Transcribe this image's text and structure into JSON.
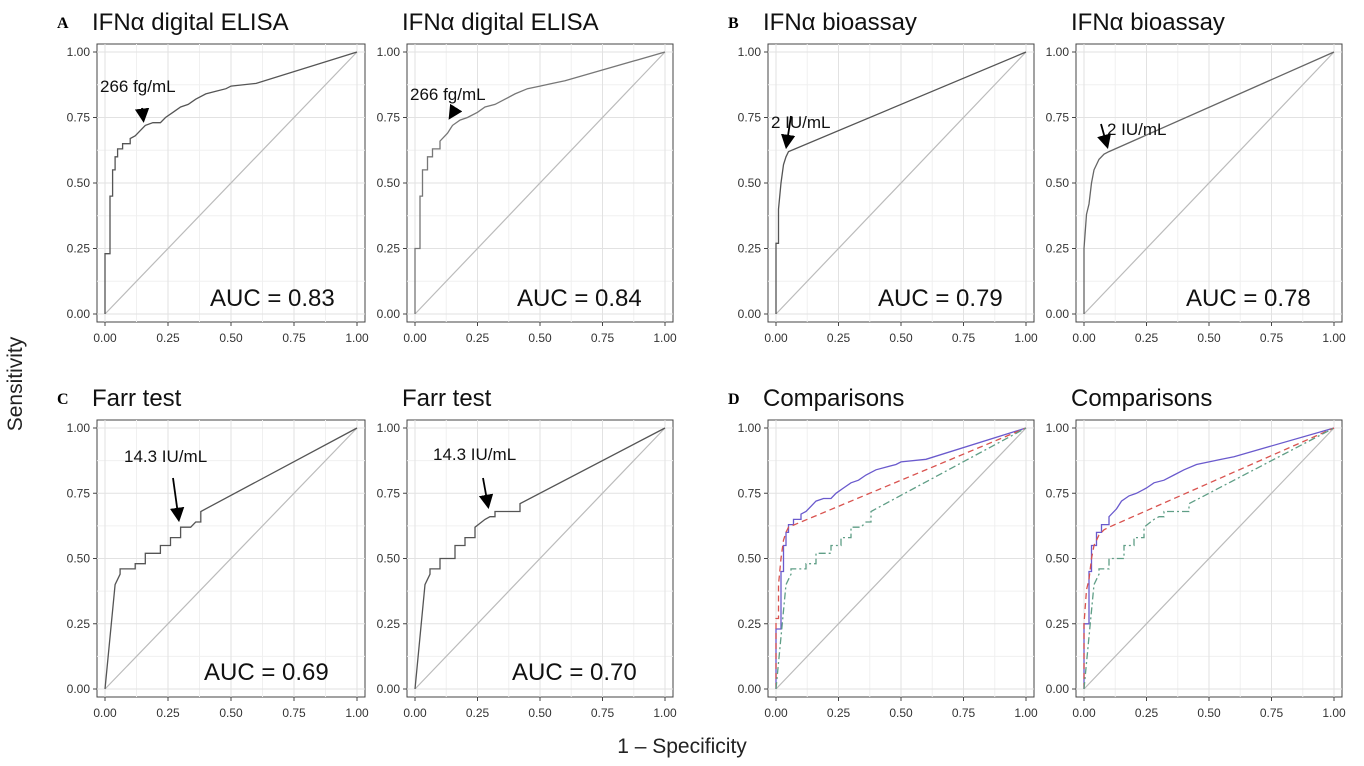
{
  "figure": {
    "ylabel": "Sensitivity",
    "xlabel": "1 – Specificity"
  },
  "chart_data": [
    {
      "type": "line",
      "panel": "A",
      "title": "IFNα digital ELISA",
      "xlim": [
        0,
        1
      ],
      "ylim": [
        0,
        1
      ],
      "x_ticks": [
        "0.00",
        "0.25",
        "0.50",
        "0.75",
        "1.00"
      ],
      "y_ticks": [
        "0.00",
        "0.25",
        "0.50",
        "0.75",
        "1.00"
      ],
      "annotation": "266 fg/mL",
      "annotation_point": [
        0.16,
        0.72
      ],
      "auc_label": "AUC = 0.83",
      "series": [
        {
          "color": "#555555",
          "dash": "",
          "x": [
            0,
            0,
            0.02,
            0.02,
            0.03,
            0.03,
            0.04,
            0.04,
            0.05,
            0.05,
            0.07,
            0.07,
            0.1,
            0.1,
            0.12,
            0.14,
            0.16,
            0.19,
            0.22,
            0.24,
            0.27,
            0.3,
            0.33,
            0.36,
            0.4,
            0.44,
            0.48,
            0.5,
            0.6,
            1
          ],
          "y": [
            0,
            0.23,
            0.23,
            0.45,
            0.45,
            0.55,
            0.55,
            0.6,
            0.6,
            0.63,
            0.63,
            0.65,
            0.65,
            0.67,
            0.68,
            0.7,
            0.72,
            0.73,
            0.73,
            0.75,
            0.77,
            0.79,
            0.8,
            0.82,
            0.84,
            0.85,
            0.86,
            0.87,
            0.88,
            1
          ]
        }
      ]
    },
    {
      "type": "line",
      "panel": "A2",
      "title": "IFNα digital ELISA",
      "xlim": [
        0,
        1
      ],
      "ylim": [
        0,
        1
      ],
      "x_ticks": [
        "0.00",
        "0.25",
        "0.50",
        "0.75",
        "1.00"
      ],
      "y_ticks": [
        "0.00",
        "0.25",
        "0.50",
        "0.75",
        "1.00"
      ],
      "annotation": "266 fg/mL",
      "annotation_point": [
        0.15,
        0.73
      ],
      "auc_label": "AUC = 0.84",
      "series": [
        {
          "color": "#777777",
          "dash": "",
          "x": [
            0,
            0,
            0.02,
            0.02,
            0.03,
            0.03,
            0.05,
            0.05,
            0.07,
            0.07,
            0.1,
            0.1,
            0.13,
            0.15,
            0.18,
            0.21,
            0.25,
            0.28,
            0.32,
            0.36,
            0.4,
            0.45,
            0.5,
            0.55,
            0.6,
            1
          ],
          "y": [
            0,
            0.25,
            0.25,
            0.45,
            0.45,
            0.55,
            0.55,
            0.6,
            0.6,
            0.63,
            0.63,
            0.66,
            0.69,
            0.72,
            0.74,
            0.75,
            0.77,
            0.79,
            0.8,
            0.82,
            0.84,
            0.86,
            0.87,
            0.88,
            0.89,
            1
          ]
        }
      ]
    },
    {
      "type": "line",
      "panel": "B",
      "title": "IFNα bioassay",
      "xlim": [
        0,
        1
      ],
      "ylim": [
        0,
        1
      ],
      "x_ticks": [
        "0.00",
        "0.25",
        "0.50",
        "0.75",
        "1.00"
      ],
      "y_ticks": [
        "0.00",
        "0.25",
        "0.50",
        "0.75",
        "1.00"
      ],
      "annotation": "2 IU/mL",
      "annotation_point": [
        0.05,
        0.62
      ],
      "auc_label": "AUC = 0.79",
      "series": [
        {
          "color": "#555555",
          "dash": "",
          "x": [
            0,
            0,
            0.01,
            0.01,
            0.02,
            0.03,
            0.04,
            0.05,
            1
          ],
          "y": [
            0,
            0.27,
            0.27,
            0.4,
            0.5,
            0.57,
            0.6,
            0.62,
            1
          ]
        }
      ]
    },
    {
      "type": "line",
      "panel": "B2",
      "title": "IFNα bioassay",
      "xlim": [
        0,
        1
      ],
      "ylim": [
        0,
        1
      ],
      "x_ticks": [
        "0.00",
        "0.25",
        "0.50",
        "0.75",
        "1.00"
      ],
      "y_ticks": [
        "0.00",
        "0.25",
        "0.50",
        "0.75",
        "1.00"
      ],
      "annotation": "2 IU/mL",
      "annotation_point": [
        0.1,
        0.62
      ],
      "auc_label": "AUC = 0.78",
      "series": [
        {
          "color": "#666666",
          "dash": "",
          "x": [
            0,
            0,
            0.01,
            0.02,
            0.03,
            0.04,
            0.06,
            0.08,
            0.1,
            1
          ],
          "y": [
            0,
            0.25,
            0.38,
            0.42,
            0.5,
            0.55,
            0.59,
            0.61,
            0.62,
            1
          ]
        }
      ]
    },
    {
      "type": "line",
      "panel": "C",
      "title": "Farr test",
      "xlim": [
        0,
        1
      ],
      "ylim": [
        0,
        1
      ],
      "x_ticks": [
        "0.00",
        "0.25",
        "0.50",
        "0.75",
        "1.00"
      ],
      "y_ticks": [
        "0.00",
        "0.25",
        "0.50",
        "0.75",
        "1.00"
      ],
      "annotation": "14.3 IU/mL",
      "annotation_point": [
        0.3,
        0.63
      ],
      "auc_label": "AUC = 0.69",
      "series": [
        {
          "color": "#555555",
          "dash": "",
          "x": [
            0,
            0.04,
            0.06,
            0.06,
            0.12,
            0.12,
            0.16,
            0.16,
            0.22,
            0.22,
            0.26,
            0.26,
            0.3,
            0.3,
            0.34,
            0.36,
            0.38,
            0.38,
            1
          ],
          "y": [
            0,
            0.4,
            0.44,
            0.46,
            0.46,
            0.48,
            0.48,
            0.52,
            0.52,
            0.55,
            0.55,
            0.58,
            0.58,
            0.62,
            0.62,
            0.64,
            0.64,
            0.68,
            1
          ]
        }
      ]
    },
    {
      "type": "line",
      "panel": "C2",
      "title": "Farr test",
      "xlim": [
        0,
        1
      ],
      "ylim": [
        0,
        1
      ],
      "x_ticks": [
        "0.00",
        "0.25",
        "0.50",
        "0.75",
        "1.00"
      ],
      "y_ticks": [
        "0.00",
        "0.25",
        "0.50",
        "0.75",
        "1.00"
      ],
      "annotation": "14.3 IU/mL",
      "annotation_point": [
        0.3,
        0.68
      ],
      "auc_label": "AUC = 0.70",
      "series": [
        {
          "color": "#555555",
          "dash": "",
          "x": [
            0,
            0.04,
            0.06,
            0.06,
            0.1,
            0.1,
            0.16,
            0.16,
            0.2,
            0.2,
            0.24,
            0.24,
            0.28,
            0.3,
            0.32,
            0.32,
            0.42,
            0.42,
            1
          ],
          "y": [
            0,
            0.4,
            0.44,
            0.46,
            0.46,
            0.5,
            0.5,
            0.55,
            0.55,
            0.58,
            0.58,
            0.62,
            0.65,
            0.66,
            0.66,
            0.68,
            0.68,
            0.71,
            1
          ]
        }
      ]
    },
    {
      "type": "line",
      "panel": "D",
      "title": "Comparisons",
      "xlim": [
        0,
        1
      ],
      "ylim": [
        0,
        1
      ],
      "x_ticks": [
        "0.00",
        "0.25",
        "0.50",
        "0.75",
        "1.00"
      ],
      "y_ticks": [
        "0.00",
        "0.25",
        "0.50",
        "0.75",
        "1.00"
      ],
      "series": [
        {
          "color": "#6a5acd",
          "dash": "",
          "x": [
            0,
            0,
            0.02,
            0.02,
            0.03,
            0.03,
            0.04,
            0.04,
            0.05,
            0.05,
            0.07,
            0.07,
            0.1,
            0.1,
            0.12,
            0.14,
            0.16,
            0.19,
            0.22,
            0.24,
            0.27,
            0.3,
            0.33,
            0.36,
            0.4,
            0.44,
            0.48,
            0.5,
            0.6,
            1
          ],
          "y": [
            0,
            0.23,
            0.23,
            0.45,
            0.45,
            0.55,
            0.55,
            0.6,
            0.6,
            0.63,
            0.63,
            0.65,
            0.65,
            0.67,
            0.68,
            0.7,
            0.72,
            0.73,
            0.73,
            0.75,
            0.77,
            0.79,
            0.8,
            0.82,
            0.84,
            0.85,
            0.86,
            0.87,
            0.88,
            1
          ]
        },
        {
          "color": "#d9534f",
          "dash": "6,4",
          "x": [
            0,
            0,
            0.01,
            0.01,
            0.02,
            0.03,
            0.04,
            0.05,
            1
          ],
          "y": [
            0,
            0.27,
            0.27,
            0.4,
            0.5,
            0.57,
            0.6,
            0.62,
            1
          ]
        },
        {
          "color": "#5f9e86",
          "dash": "7,3,2,3",
          "x": [
            0,
            0.04,
            0.06,
            0.06,
            0.12,
            0.12,
            0.16,
            0.16,
            0.22,
            0.22,
            0.26,
            0.26,
            0.3,
            0.3,
            0.34,
            0.36,
            0.38,
            0.38,
            1
          ],
          "y": [
            0,
            0.4,
            0.44,
            0.46,
            0.46,
            0.48,
            0.48,
            0.52,
            0.52,
            0.55,
            0.55,
            0.58,
            0.58,
            0.62,
            0.62,
            0.64,
            0.64,
            0.68,
            1
          ]
        }
      ]
    },
    {
      "type": "line",
      "panel": "D2",
      "title": "Comparisons",
      "xlim": [
        0,
        1
      ],
      "ylim": [
        0,
        1
      ],
      "x_ticks": [
        "0.00",
        "0.25",
        "0.50",
        "0.75",
        "1.00"
      ],
      "y_ticks": [
        "0.00",
        "0.25",
        "0.50",
        "0.75",
        "1.00"
      ],
      "series": [
        {
          "color": "#6a5acd",
          "dash": "",
          "x": [
            0,
            0,
            0.02,
            0.02,
            0.03,
            0.03,
            0.05,
            0.05,
            0.07,
            0.07,
            0.1,
            0.1,
            0.13,
            0.15,
            0.18,
            0.21,
            0.25,
            0.28,
            0.32,
            0.36,
            0.4,
            0.45,
            0.5,
            0.55,
            0.6,
            1
          ],
          "y": [
            0,
            0.25,
            0.25,
            0.45,
            0.45,
            0.55,
            0.55,
            0.6,
            0.6,
            0.63,
            0.63,
            0.66,
            0.69,
            0.72,
            0.74,
            0.75,
            0.77,
            0.79,
            0.8,
            0.82,
            0.84,
            0.86,
            0.87,
            0.88,
            0.89,
            1
          ]
        },
        {
          "color": "#d9534f",
          "dash": "6,4",
          "x": [
            0,
            0,
            0.01,
            0.02,
            0.03,
            0.04,
            0.06,
            0.08,
            0.1,
            1
          ],
          "y": [
            0,
            0.25,
            0.38,
            0.42,
            0.5,
            0.55,
            0.59,
            0.61,
            0.62,
            1
          ]
        },
        {
          "color": "#5f9e86",
          "dash": "7,3,2,3",
          "x": [
            0,
            0.04,
            0.06,
            0.06,
            0.1,
            0.1,
            0.16,
            0.16,
            0.2,
            0.2,
            0.24,
            0.24,
            0.28,
            0.3,
            0.32,
            0.32,
            0.42,
            0.42,
            1
          ],
          "y": [
            0,
            0.4,
            0.44,
            0.46,
            0.46,
            0.5,
            0.5,
            0.55,
            0.55,
            0.58,
            0.58,
            0.62,
            0.65,
            0.66,
            0.66,
            0.68,
            0.68,
            0.71,
            1
          ]
        }
      ]
    }
  ]
}
